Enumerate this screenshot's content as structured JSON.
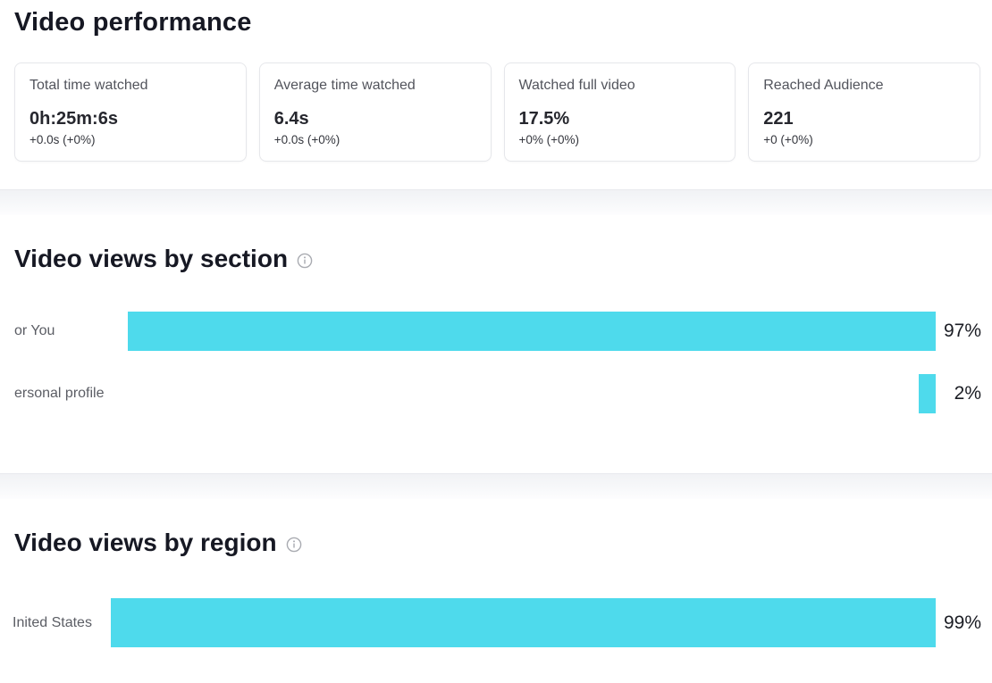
{
  "performance": {
    "title": "Video performance",
    "cards": [
      {
        "label": "Total time watched",
        "value": "0h:25m:6s",
        "delta": "+0.0s (+0%)"
      },
      {
        "label": "Average time watched",
        "value": "6.4s",
        "delta": "+0.0s (+0%)"
      },
      {
        "label": "Watched full video",
        "value": "17.5%",
        "delta": "+0% (+0%)"
      },
      {
        "label": "Reached Audience",
        "value": "221",
        "delta": "+0 (+0%)"
      }
    ]
  },
  "colors": {
    "bar": "#4edaec",
    "heading_text": "#161823",
    "muted_text": "#52545c",
    "band_top": "#f1f2f5",
    "info_icon": "#a9abb1"
  },
  "icons": {
    "info": "circled-i"
  },
  "chart_data": [
    {
      "type": "bar",
      "title": "Video views by section",
      "orientation": "horizontal",
      "bar_anchor": "right",
      "categories": [
        "or You",
        "ersonal profile"
      ],
      "values": [
        97,
        2
      ],
      "value_labels": [
        "97%",
        "2%"
      ],
      "xlim": [
        0,
        100
      ],
      "grid": false,
      "legend": false,
      "bar_color": "#4edaec"
    },
    {
      "type": "bar",
      "title": "Video views by region",
      "orientation": "horizontal",
      "bar_anchor": "right",
      "categories": [
        "Inited States"
      ],
      "values": [
        99
      ],
      "value_labels": [
        "99%"
      ],
      "xlim": [
        0,
        100
      ],
      "grid": false,
      "legend": false,
      "bar_color": "#4edaec"
    }
  ]
}
